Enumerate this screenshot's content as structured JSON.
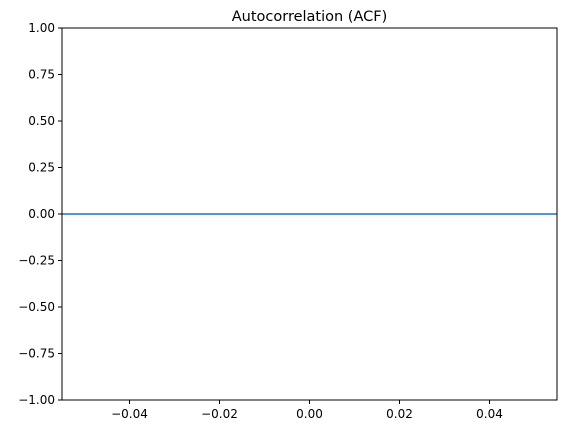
{
  "chart_data": {
    "type": "line",
    "title": "Autocorrelation (ACF)",
    "xlabel": "",
    "ylabel": "",
    "xlim": [
      -0.055,
      0.055
    ],
    "ylim": [
      -1.0,
      1.0
    ],
    "xticks": [
      -0.04,
      -0.02,
      0.0,
      0.02,
      0.04
    ],
    "xtick_labels": [
      "−0.04",
      "−0.02",
      "0.00",
      "0.02",
      "0.04"
    ],
    "yticks": [
      1.0,
      0.75,
      0.5,
      0.25,
      0.0,
      -0.25,
      -0.5,
      -0.75,
      -1.0
    ],
    "ytick_labels": [
      "1.00",
      "0.75",
      "0.50",
      "0.25",
      "0.00",
      "−0.25",
      "−0.50",
      "−0.75",
      "−1.00"
    ],
    "grid": false,
    "series": [
      {
        "x": [
          -0.055,
          0.055
        ],
        "y": [
          0.0,
          0.0
        ],
        "color": "#1f77b4"
      }
    ]
  }
}
